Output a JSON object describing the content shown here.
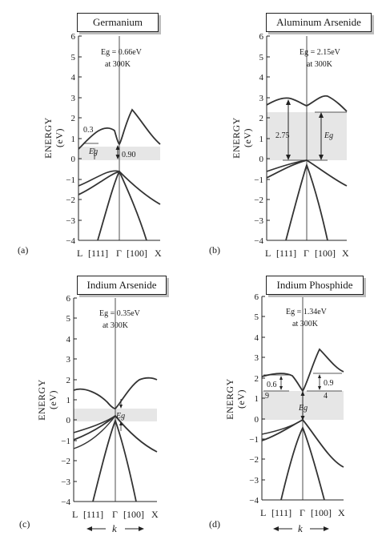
{
  "y_axis": {
    "label_line1": "ENERGY",
    "label_line2": "(eV)",
    "ticks": [
      "6",
      "5",
      "4",
      "3",
      "2",
      "1",
      "0",
      "−1",
      "−2",
      "−3",
      "−4"
    ]
  },
  "x_axis": {
    "left": "L",
    "dir_left": "[111]",
    "center": "Γ",
    "dir_right": "[100]",
    "right": "X",
    "k_label": "k"
  },
  "panels": [
    {
      "id": "a",
      "letter": "(a)",
      "title": "Germanium",
      "gap_line1": "Eg = 0.66eV",
      "gap_line2": "at 300K",
      "annotations": [
        "0.3",
        "0.90"
      ],
      "eg_label": "Eg"
    },
    {
      "id": "b",
      "letter": "(b)",
      "title": "Aluminum Arsenide",
      "gap_line1": "Eg = 2.15eV",
      "gap_line2": "at 300K",
      "annotations": [
        "2.75"
      ],
      "eg_label": "Eg"
    },
    {
      "id": "c",
      "letter": "(c)",
      "title": "Indium Arsenide",
      "gap_line1": "Eg = 0.35eV",
      "gap_line2": "at 300K",
      "annotations": [],
      "eg_label": "Eg"
    },
    {
      "id": "d",
      "letter": "(d)",
      "title": "Indium Phosphide",
      "gap_line1": "Eg = 1.34eV",
      "gap_line2": "at 300K",
      "annotations": [
        "0.6",
        "9",
        "0.9",
        "4"
      ],
      "eg_label": "Eg"
    }
  ]
}
